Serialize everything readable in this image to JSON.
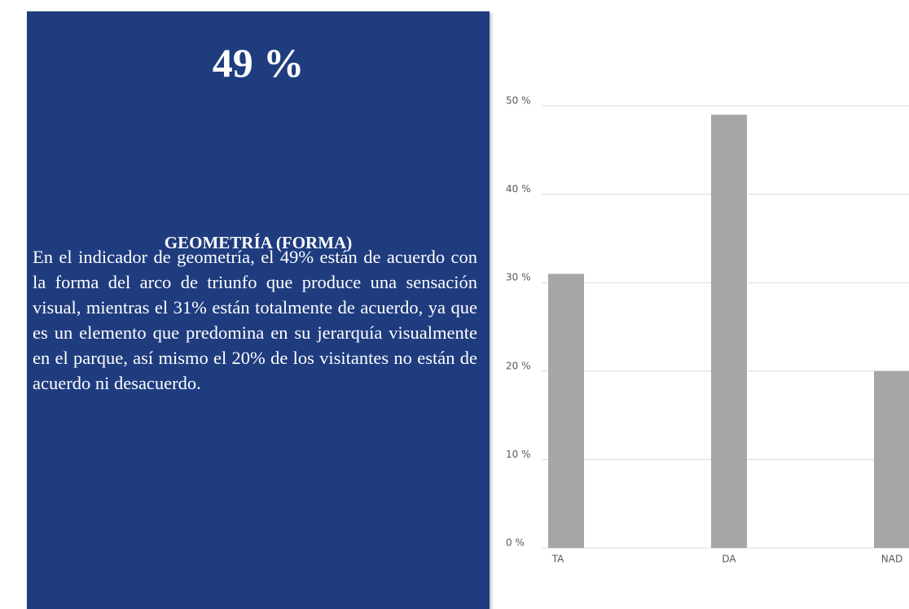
{
  "panel": {
    "headline": "49 %",
    "heading": "GEOMETRÍA (FORMA)",
    "text": "En el indicador de geometría, el 49% están de acuerdo con la forma del arco de triunfo que produce una sensación visual, mientras el 31% están totalmente de acuerdo, ya que es un elemento que predomina en su jerarquía visualmente en el parque, así mismo el 20% de los visitantes no están de acuerdo ni desacuerdo."
  },
  "chart_data": {
    "type": "bar",
    "categories": [
      "TA",
      "DA",
      "NAD"
    ],
    "values": [
      31,
      49,
      20
    ],
    "color": "#a6a6a6",
    "ylim": [
      0,
      50
    ],
    "yticks": [
      {
        "value": 0,
        "label": "0 %"
      },
      {
        "value": 10,
        "label": "10 %"
      },
      {
        "value": 20,
        "label": "20 %"
      },
      {
        "value": 30,
        "label": "30 %"
      },
      {
        "value": 40,
        "label": "40 %"
      },
      {
        "value": 50,
        "label": "50 %"
      }
    ],
    "grid": true
  }
}
